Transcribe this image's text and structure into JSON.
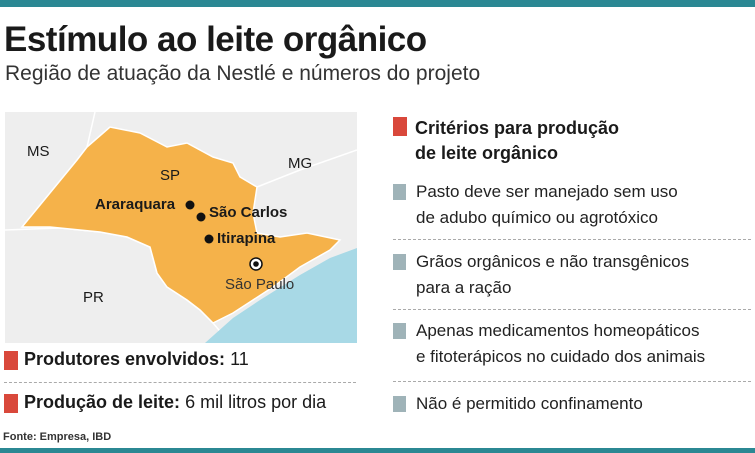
{
  "title": "Estímulo ao leite orgânico",
  "subtitle": "Região de atuação da Nestlé e números do projeto",
  "map": {
    "states": [
      "MS",
      "SP",
      "MG",
      "PR"
    ],
    "cities": [
      "Araraquara",
      "São Carlos",
      "Itirapina"
    ],
    "capital": "São Paulo",
    "colors": {
      "state": "#f5b24a",
      "land": "#eeeeee",
      "sea": "#a8d9e6"
    }
  },
  "stats": [
    {
      "label": "Produtores envolvidos:",
      "value": "11"
    },
    {
      "label": "Produção de leite:",
      "value": "6 mil litros por dia"
    }
  ],
  "source": "Fonte: Empresa, IBD",
  "criteria": {
    "heading_line1": "Critérios para produção",
    "heading_line2": "de leite orgânico",
    "items": [
      {
        "line1": "Pasto deve ser manejado sem uso",
        "line2": "de adubo químico ou agrotóxico"
      },
      {
        "line1": "Grãos orgânicos e não transgênicos",
        "line2": "para a ração"
      },
      {
        "line1": "Apenas medicamentos homeopáticos",
        "line2": "e fitoterápicos no cuidado dos animais"
      },
      {
        "line1": "Não é permitido confinamento",
        "line2": ""
      }
    ]
  },
  "colors": {
    "accent_bar": "#2b8893",
    "red_marker": "#d9483b",
    "gray_marker": "#9fb3b8"
  }
}
